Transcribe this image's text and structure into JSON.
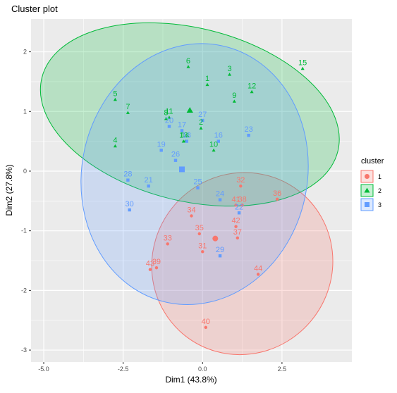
{
  "chart_data": {
    "type": "scatter",
    "title": "Cluster plot",
    "xlabel": "Dim1 (43.8%)",
    "ylabel": "Dim2 (27.8%)",
    "xlim": [
      -5.4,
      4.7
    ],
    "ylim": [
      -3.2,
      2.55
    ],
    "xticks": [
      -5.0,
      -2.5,
      0.0,
      2.5
    ],
    "xtick_labels": [
      "-5.0",
      "-2.5",
      "0.0",
      "2.5"
    ],
    "yticks": [
      -3,
      -2,
      -1,
      0,
      1,
      2
    ],
    "ytick_labels": [
      "-3",
      "-2",
      "-1",
      "0",
      "1",
      "2"
    ],
    "grid": true,
    "legend": {
      "title": "cluster",
      "position": "right"
    },
    "series": [
      {
        "name": "1",
        "color": "#F8766D",
        "marker": "circle",
        "centroid": [
          0.4,
          -1.13
        ],
        "ellipse": {
          "cx": 1.25,
          "cy": -1.55,
          "rx": 2.9,
          "ry": 1.5,
          "angle_deg": -52
        },
        "points": [
          {
            "label": "31",
            "x": 0.0,
            "y": -1.35
          },
          {
            "label": "32",
            "x": 1.2,
            "y": -0.25
          },
          {
            "label": "33",
            "x": -1.1,
            "y": -1.22
          },
          {
            "label": "34",
            "x": -0.35,
            "y": -0.75
          },
          {
            "label": "35",
            "x": -0.1,
            "y": -1.05
          },
          {
            "label": "36",
            "x": 2.35,
            "y": -0.47
          },
          {
            "label": "37",
            "x": 1.1,
            "y": -1.12
          },
          {
            "label": "38",
            "x": 1.25,
            "y": -0.57
          },
          {
            "label": "39",
            "x": -1.45,
            "y": -1.62
          },
          {
            "label": "40",
            "x": 0.1,
            "y": -2.62
          },
          {
            "label": "41",
            "x": 1.05,
            "y": -0.57
          },
          {
            "label": "42",
            "x": 1.05,
            "y": -0.93
          },
          {
            "label": "43",
            "x": -1.65,
            "y": -1.65
          },
          {
            "label": "44",
            "x": 1.75,
            "y": -1.73
          }
        ]
      },
      {
        "name": "2",
        "color": "#00BA38",
        "marker": "triangle",
        "centroid": [
          -0.4,
          1.02
        ],
        "ellipse": {
          "cx": -0.4,
          "cy": 0.95,
          "rx": 4.8,
          "ry": 1.45,
          "angle_deg": 14
        },
        "points": [
          {
            "label": "1",
            "x": 0.15,
            "y": 1.45
          },
          {
            "label": "2",
            "x": -0.05,
            "y": 0.72
          },
          {
            "label": "3",
            "x": 0.85,
            "y": 1.62
          },
          {
            "label": "4",
            "x": -2.75,
            "y": 0.42
          },
          {
            "label": "5",
            "x": -2.75,
            "y": 1.2
          },
          {
            "label": "6",
            "x": -0.45,
            "y": 1.75
          },
          {
            "label": "7",
            "x": -2.35,
            "y": 0.98
          },
          {
            "label": "8",
            "x": -1.15,
            "y": 0.88
          },
          {
            "label": "9",
            "x": 1.0,
            "y": 1.17
          },
          {
            "label": "10",
            "x": 0.35,
            "y": 0.35
          },
          {
            "label": "11",
            "x": -1.05,
            "y": 0.9
          },
          {
            "label": "12",
            "x": 1.55,
            "y": 1.33
          },
          {
            "label": "13",
            "x": -0.6,
            "y": 0.5
          },
          {
            "label": "14",
            "x": -0.55,
            "y": 0.5
          },
          {
            "label": "15",
            "x": 3.15,
            "y": 1.72
          }
        ]
      },
      {
        "name": "3",
        "color": "#619CFF",
        "marker": "square",
        "centroid": [
          -0.65,
          0.03
        ],
        "ellipse": {
          "cx": -0.25,
          "cy": -0.05,
          "rx": 3.55,
          "ry": 2.2,
          "angle_deg": 12
        },
        "points": [
          {
            "label": "16",
            "x": 0.5,
            "y": 0.5
          },
          {
            "label": "17",
            "x": -0.65,
            "y": 0.68
          },
          {
            "label": "18",
            "x": -0.5,
            "y": 0.5
          },
          {
            "label": "19",
            "x": -1.3,
            "y": 0.35
          },
          {
            "label": "20",
            "x": -1.05,
            "y": 0.75
          },
          {
            "label": "21",
            "x": -1.7,
            "y": -0.25
          },
          {
            "label": "22",
            "x": 1.15,
            "y": -0.7
          },
          {
            "label": "23",
            "x": 1.45,
            "y": 0.6
          },
          {
            "label": "24",
            "x": 0.55,
            "y": -0.48
          },
          {
            "label": "25",
            "x": -0.15,
            "y": -0.28
          },
          {
            "label": "26",
            "x": -0.85,
            "y": 0.18
          },
          {
            "label": "27",
            "x": 0.0,
            "y": 0.85
          },
          {
            "label": "28",
            "x": -2.35,
            "y": -0.15
          },
          {
            "label": "29",
            "x": 0.55,
            "y": -1.42
          },
          {
            "label": "30",
            "x": -2.3,
            "y": -0.65
          }
        ]
      }
    ]
  }
}
